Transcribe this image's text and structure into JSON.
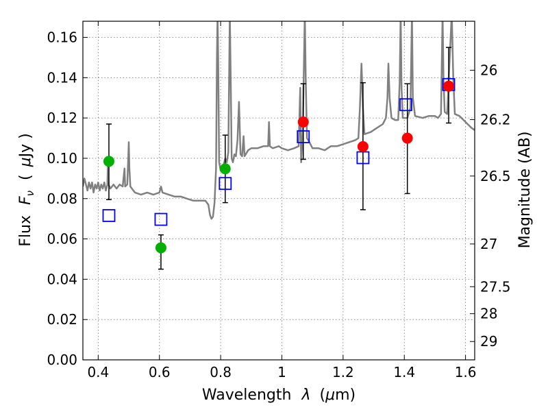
{
  "chart_data": {
    "type": "scatter",
    "xlabel_text": "Wavelength",
    "xlabel_symbol": "λ",
    "xlabel_unit_open": "(",
    "xlabel_unit_mu": "μ",
    "xlabel_unit_rest": "m)",
    "ylabel_text": "Flux",
    "ylabel_symbol": "F",
    "ylabel_subscript": "ν",
    "ylabel_unit_open": "(",
    "ylabel_unit_mu": "μ",
    "ylabel_unit_rest": "Jy )",
    "y2label": "Magnitude (AB)",
    "xlim": [
      0.35,
      1.63
    ],
    "ylim": [
      0.0,
      0.168
    ],
    "grid": true,
    "x_ticks": [
      {
        "value": 0.4,
        "label": "0.4"
      },
      {
        "value": 0.6,
        "label": "0.6"
      },
      {
        "value": 0.8,
        "label": "0.8"
      },
      {
        "value": 1.0,
        "label": "1"
      },
      {
        "value": 1.2,
        "label": "1.2"
      },
      {
        "value": 1.4,
        "label": "1.4"
      },
      {
        "value": 1.6,
        "label": "1.6"
      }
    ],
    "y_ticks": [
      {
        "value": 0.0,
        "label": "0.00"
      },
      {
        "value": 0.02,
        "label": "0.02"
      },
      {
        "value": 0.04,
        "label": "0.04"
      },
      {
        "value": 0.06,
        "label": "0.06"
      },
      {
        "value": 0.08,
        "label": "0.08"
      },
      {
        "value": 0.1,
        "label": "0.10"
      },
      {
        "value": 0.12,
        "label": "0.12"
      },
      {
        "value": 0.14,
        "label": "0.14"
      },
      {
        "value": 0.16,
        "label": "0.16"
      }
    ],
    "y2_ticks": [
      {
        "flux": 0.1437,
        "label": "26"
      },
      {
        "flux": 0.1192,
        "label": "26.2"
      },
      {
        "flux": 0.0912,
        "label": "26.5"
      },
      {
        "flux": 0.0575,
        "label": "27"
      },
      {
        "flux": 0.0363,
        "label": "27.5"
      },
      {
        "flux": 0.0229,
        "label": "28"
      },
      {
        "flux": 0.0091,
        "label": "29"
      }
    ],
    "series": [
      {
        "kind": "model_spectrum",
        "color": "#808080",
        "points": [
          [
            0.35,
            0.086
          ],
          [
            0.355,
            0.09
          ],
          [
            0.36,
            0.087
          ],
          [
            0.365,
            0.084
          ],
          [
            0.37,
            0.088
          ],
          [
            0.375,
            0.085
          ],
          [
            0.38,
            0.088
          ],
          [
            0.385,
            0.083
          ],
          [
            0.39,
            0.087
          ],
          [
            0.395,
            0.085
          ],
          [
            0.4,
            0.088
          ],
          [
            0.405,
            0.084
          ],
          [
            0.41,
            0.087
          ],
          [
            0.415,
            0.085
          ],
          [
            0.42,
            0.088
          ],
          [
            0.425,
            0.084
          ],
          [
            0.43,
            0.087
          ],
          [
            0.432,
            0.099
          ],
          [
            0.434,
            0.087
          ],
          [
            0.44,
            0.085
          ],
          [
            0.45,
            0.087
          ],
          [
            0.46,
            0.085
          ],
          [
            0.47,
            0.087
          ],
          [
            0.48,
            0.086
          ],
          [
            0.486,
            0.095
          ],
          [
            0.488,
            0.086
          ],
          [
            0.495,
            0.087
          ],
          [
            0.498,
            0.099
          ],
          [
            0.5,
            0.108
          ],
          [
            0.502,
            0.095
          ],
          [
            0.505,
            0.086
          ],
          [
            0.52,
            0.083
          ],
          [
            0.54,
            0.082
          ],
          [
            0.56,
            0.083
          ],
          [
            0.58,
            0.082
          ],
          [
            0.6,
            0.083
          ],
          [
            0.605,
            0.086
          ],
          [
            0.61,
            0.083
          ],
          [
            0.63,
            0.082
          ],
          [
            0.65,
            0.081
          ],
          [
            0.67,
            0.081
          ],
          [
            0.69,
            0.08
          ],
          [
            0.71,
            0.079
          ],
          [
            0.73,
            0.079
          ],
          [
            0.75,
            0.079
          ],
          [
            0.76,
            0.077
          ],
          [
            0.765,
            0.072
          ],
          [
            0.77,
            0.07
          ],
          [
            0.775,
            0.071
          ],
          [
            0.78,
            0.078
          ],
          [
            0.785,
            0.095
          ],
          [
            0.788,
            0.15
          ],
          [
            0.79,
            0.172
          ],
          [
            0.792,
            0.15
          ],
          [
            0.795,
            0.098
          ],
          [
            0.8,
            0.094
          ],
          [
            0.805,
            0.096
          ],
          [
            0.81,
            0.097
          ],
          [
            0.815,
            0.1
          ],
          [
            0.82,
            0.098
          ],
          [
            0.825,
            0.103
          ],
          [
            0.83,
            0.172
          ],
          [
            0.833,
            0.14
          ],
          [
            0.836,
            0.1
          ],
          [
            0.84,
            0.098
          ],
          [
            0.845,
            0.102
          ],
          [
            0.85,
            0.101
          ],
          [
            0.855,
            0.109
          ],
          [
            0.86,
            0.128
          ],
          [
            0.865,
            0.102
          ],
          [
            0.87,
            0.101
          ],
          [
            0.875,
            0.111
          ],
          [
            0.878,
            0.101
          ],
          [
            0.89,
            0.104
          ],
          [
            0.9,
            0.105
          ],
          [
            0.92,
            0.105
          ],
          [
            0.94,
            0.106
          ],
          [
            0.955,
            0.106
          ],
          [
            0.958,
            0.118
          ],
          [
            0.961,
            0.106
          ],
          [
            0.97,
            0.105
          ],
          [
            0.99,
            0.106
          ],
          [
            1.0,
            0.105
          ],
          [
            1.02,
            0.104
          ],
          [
            1.04,
            0.105
          ],
          [
            1.055,
            0.106
          ],
          [
            1.06,
            0.135
          ],
          [
            1.063,
            0.098
          ],
          [
            1.068,
            0.112
          ],
          [
            1.075,
            0.172
          ],
          [
            1.078,
            0.14
          ],
          [
            1.082,
            0.11
          ],
          [
            1.09,
            0.108
          ],
          [
            1.1,
            0.105
          ],
          [
            1.12,
            0.105
          ],
          [
            1.14,
            0.104
          ],
          [
            1.16,
            0.106
          ],
          [
            1.18,
            0.106
          ],
          [
            1.2,
            0.107
          ],
          [
            1.22,
            0.108
          ],
          [
            1.24,
            0.109
          ],
          [
            1.25,
            0.11
          ],
          [
            1.255,
            0.125
          ],
          [
            1.26,
            0.147
          ],
          [
            1.265,
            0.125
          ],
          [
            1.27,
            0.112
          ],
          [
            1.29,
            0.113
          ],
          [
            1.31,
            0.115
          ],
          [
            1.33,
            0.117
          ],
          [
            1.34,
            0.12
          ],
          [
            1.345,
            0.13
          ],
          [
            1.348,
            0.147
          ],
          [
            1.352,
            0.13
          ],
          [
            1.358,
            0.12
          ],
          [
            1.37,
            0.119
          ],
          [
            1.38,
            0.119
          ],
          [
            1.385,
            0.138
          ],
          [
            1.388,
            0.172
          ],
          [
            1.391,
            0.135
          ],
          [
            1.395,
            0.12
          ],
          [
            1.41,
            0.12
          ],
          [
            1.42,
            0.125
          ],
          [
            1.425,
            0.172
          ],
          [
            1.428,
            0.13
          ],
          [
            1.435,
            0.121
          ],
          [
            1.46,
            0.12
          ],
          [
            1.48,
            0.121
          ],
          [
            1.5,
            0.121
          ],
          [
            1.51,
            0.12
          ],
          [
            1.52,
            0.122
          ],
          [
            1.525,
            0.172
          ],
          [
            1.528,
            0.14
          ],
          [
            1.532,
            0.123
          ],
          [
            1.54,
            0.122
          ],
          [
            1.555,
            0.172
          ],
          [
            1.56,
            0.14
          ],
          [
            1.565,
            0.122
          ],
          [
            1.58,
            0.121
          ],
          [
            1.6,
            0.118
          ],
          [
            1.62,
            0.115
          ],
          [
            1.63,
            0.114
          ]
        ]
      },
      {
        "kind": "observed_green",
        "color": "#00b000",
        "points": [
          {
            "x": 0.435,
            "y": 0.0985,
            "yerr_low": 0.0795,
            "yerr_high": 0.117
          },
          {
            "x": 0.605,
            "y": 0.0556,
            "yerr_low": 0.045,
            "yerr_high": 0.062
          },
          {
            "x": 0.815,
            "y": 0.0948,
            "yerr_low": 0.078,
            "yerr_high": 0.1115
          }
        ]
      },
      {
        "kind": "observed_red",
        "color": "#ff0000",
        "points": [
          {
            "x": 1.07,
            "y": 0.118,
            "yerr_low": 0.0995,
            "yerr_high": 0.137
          },
          {
            "x": 1.265,
            "y": 0.1058,
            "yerr_low": 0.0745,
            "yerr_high": 0.1375
          },
          {
            "x": 1.41,
            "y": 0.11,
            "yerr_low": 0.0825,
            "yerr_high": 0.137
          },
          {
            "x": 1.545,
            "y": 0.1358,
            "yerr_low": 0.1175,
            "yerr_high": 0.155
          }
        ]
      },
      {
        "kind": "model_photometry",
        "color": "#0000ff",
        "points": [
          {
            "x": 0.435,
            "y": 0.0716
          },
          {
            "x": 0.605,
            "y": 0.0697
          },
          {
            "x": 0.815,
            "y": 0.0875
          },
          {
            "x": 1.07,
            "y": 0.1107
          },
          {
            "x": 1.265,
            "y": 0.1003
          },
          {
            "x": 1.405,
            "y": 0.1266
          },
          {
            "x": 1.545,
            "y": 0.1366
          }
        ]
      }
    ]
  }
}
